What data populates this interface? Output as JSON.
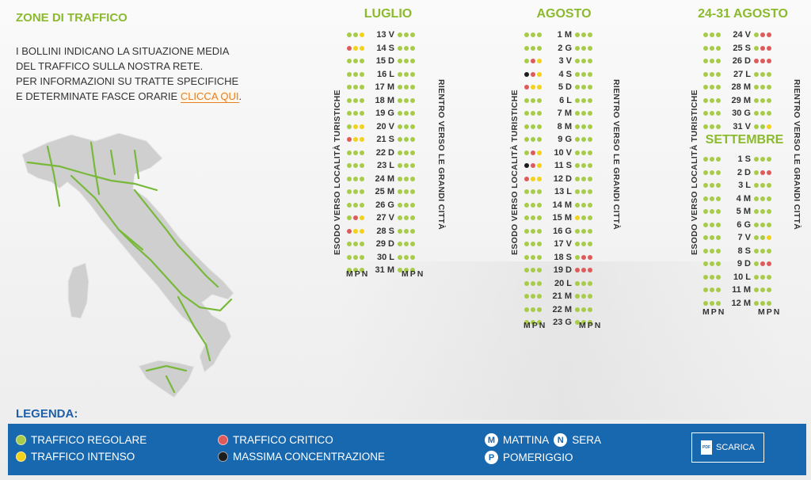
{
  "colors": {
    "regolare": "#a8cc4a",
    "intenso": "#f2d21b",
    "critico": "#dd5b5b",
    "massima": "#1c1c1c"
  },
  "header": {
    "title": "ZONE DI TRAFFICO"
  },
  "intro": {
    "line1": "I BOLLINI INDICANO LA SITUAZIONE MEDIA",
    "line2": "DEL TRAFFICO SULLA NOSTRA RETE.",
    "line3": "PER INFORMAZIONI SU TRATTE SPECIFICHE",
    "line4": "E DETERMINATE FASCE ORARIE",
    "link": "CLICCA QUI",
    "end": "."
  },
  "labels": {
    "esodo": "ESODO VERSO LOCALITÀ TURISTICHE",
    "rientro": "RIENTRO VERSO LE GRANDI CITTÀ",
    "mpn": "MPN"
  },
  "calendar": {
    "luglio": {
      "title": "LUGLIO",
      "rows": [
        [
          "13 V",
          "ggy",
          "ggg"
        ],
        [
          "14 S",
          "ryy",
          "ggg"
        ],
        [
          "15 D",
          "ggg",
          "ggg"
        ],
        [
          "16 L",
          "ggg",
          "ggg"
        ],
        [
          "17 M",
          "ggg",
          "ggg"
        ],
        [
          "18 M",
          "ggg",
          "ggg"
        ],
        [
          "19 G",
          "ggg",
          "ggg"
        ],
        [
          "20 V",
          "gyy",
          "ggg"
        ],
        [
          "21 S",
          "ryy",
          "ggg"
        ],
        [
          "22 D",
          "ggg",
          "ggg"
        ],
        [
          "23 L",
          "ggg",
          "ggg"
        ],
        [
          "24 M",
          "ggg",
          "ggg"
        ],
        [
          "25 M",
          "ggg",
          "ggg"
        ],
        [
          "26 G",
          "ggg",
          "ggg"
        ],
        [
          "27 V",
          "gry",
          "ggg"
        ],
        [
          "28 S",
          "ryy",
          "ggg"
        ],
        [
          "29 D",
          "ggg",
          "ggg"
        ],
        [
          "30 L",
          "ggg",
          "ggg"
        ],
        [
          "31 M",
          "ggg",
          "ggg"
        ]
      ]
    },
    "agosto": {
      "title": "AGOSTO",
      "rows": [
        [
          "1 M",
          "ggg",
          "ggg"
        ],
        [
          "2 G",
          "ggg",
          "ggg"
        ],
        [
          "3 V",
          "gry",
          "ggg"
        ],
        [
          "4 S",
          "bry",
          "ggg"
        ],
        [
          "5 D",
          "ryy",
          "ggg"
        ],
        [
          "6 L",
          "ggg",
          "ggg"
        ],
        [
          "7 M",
          "ggg",
          "ggg"
        ],
        [
          "8 M",
          "ggg",
          "ggg"
        ],
        [
          "9 G",
          "ggg",
          "ggg"
        ],
        [
          "10 V",
          "gry",
          "ggg"
        ],
        [
          "11 S",
          "bry",
          "ggg"
        ],
        [
          "12 D",
          "ryy",
          "ggg"
        ],
        [
          "13 L",
          "ggg",
          "ggg"
        ],
        [
          "14 M",
          "ggg",
          "ggg"
        ],
        [
          "15 M",
          "ggg",
          "ygg"
        ],
        [
          "16 G",
          "ggg",
          "ggg"
        ],
        [
          "17 V",
          "ggg",
          "ggg"
        ],
        [
          "18 S",
          "ggg",
          "grr"
        ],
        [
          "19 D",
          "ggg",
          "rrr"
        ],
        [
          "20 L",
          "ggg",
          "ggg"
        ],
        [
          "21 M",
          "ggg",
          "ggg"
        ],
        [
          "22 M",
          "ggg",
          "ggg"
        ],
        [
          "23 G",
          "ggg",
          "ggg"
        ]
      ]
    },
    "fine_agosto": {
      "title": "24-31 AGOSTO",
      "rows": [
        [
          "24 V",
          "ggg",
          "grr"
        ],
        [
          "25 S",
          "ggg",
          "grr"
        ],
        [
          "26 D",
          "ggg",
          "rrr"
        ],
        [
          "27 L",
          "ggg",
          "ggg"
        ],
        [
          "28 M",
          "ggg",
          "ggg"
        ],
        [
          "29 M",
          "ggg",
          "ggg"
        ],
        [
          "30 G",
          "ggg",
          "ggg"
        ],
        [
          "31 V",
          "ggg",
          "ggy"
        ]
      ]
    },
    "settembre": {
      "title": "SETTEMBRE",
      "rows": [
        [
          "1 S",
          "ggg",
          "ggg"
        ],
        [
          "2 D",
          "ggg",
          "grr"
        ],
        [
          "3 L",
          "ggg",
          "ggg"
        ],
        [
          "4 M",
          "ggg",
          "ggg"
        ],
        [
          "5 M",
          "ggg",
          "ggg"
        ],
        [
          "6 G",
          "ggg",
          "ggg"
        ],
        [
          "7 V",
          "ggg",
          "ggy"
        ],
        [
          "8 S",
          "ggg",
          "ggg"
        ],
        [
          "9 D",
          "ggg",
          "grr"
        ],
        [
          "10 L",
          "ggg",
          "ggg"
        ],
        [
          "11 M",
          "ggg",
          "ggg"
        ],
        [
          "12 M",
          "ggg",
          "ggg"
        ]
      ]
    }
  },
  "legend": {
    "title": "LEGENDA:",
    "regolare": "TRAFFICO REGOLARE",
    "intenso": "TRAFFICO INTENSO",
    "critico": "TRAFFICO CRITICO",
    "massima": "MASSIMA CONCENTRAZIONE",
    "m_letter": "M",
    "mattina": "MATTINA",
    "n_letter": "N",
    "sera": "SERA",
    "p_letter": "P",
    "pomeriggio": "POMERIGGIO",
    "pdf_label": "PDF",
    "scarica": "SCARICA"
  }
}
